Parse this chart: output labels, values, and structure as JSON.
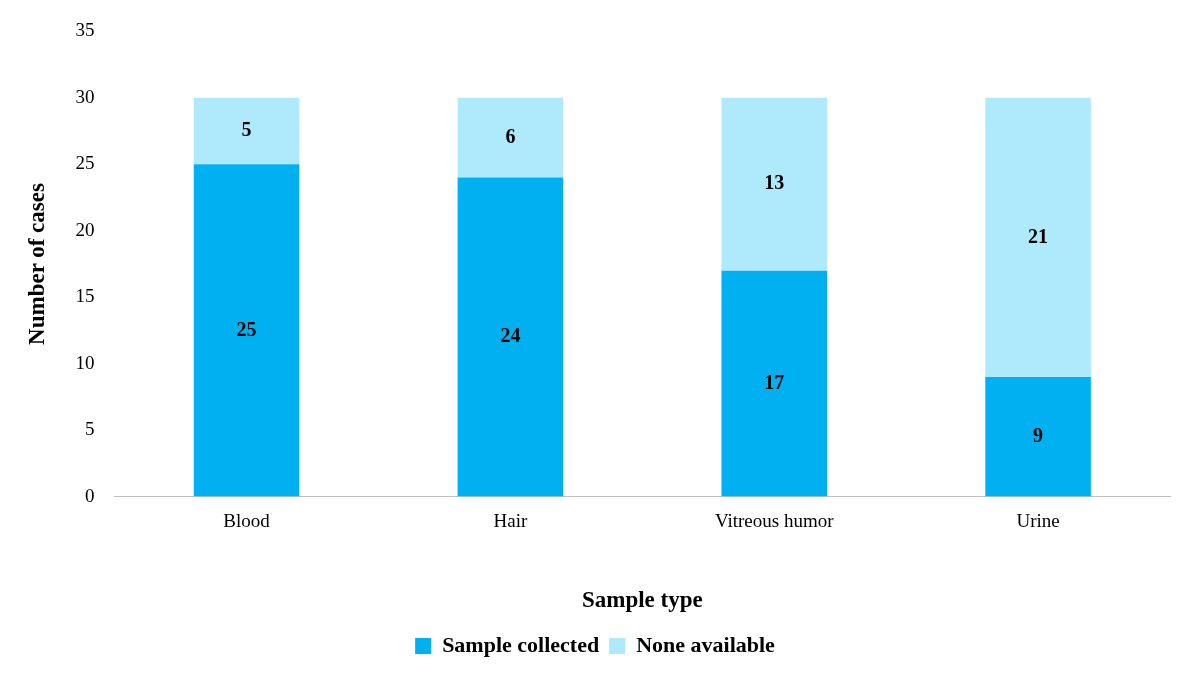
{
  "chart_data": {
    "type": "bar",
    "stacked": true,
    "xlabel": "Sample type",
    "ylabel": "Number of cases",
    "categories": [
      "Blood",
      "Hair",
      "Vitreous humor",
      "Urine"
    ],
    "series": [
      {
        "name": "Sample collected",
        "color": "#00b0f0",
        "values": [
          25,
          24,
          17,
          9
        ]
      },
      {
        "name": "None available",
        "color": "#aeeafb",
        "values": [
          5,
          6,
          13,
          21
        ]
      }
    ],
    "ylim": [
      0,
      35
    ],
    "yticks": [
      0,
      5,
      10,
      15,
      20,
      25,
      30,
      35
    ],
    "grid": false,
    "legend": "bottom",
    "data_labels": true
  }
}
